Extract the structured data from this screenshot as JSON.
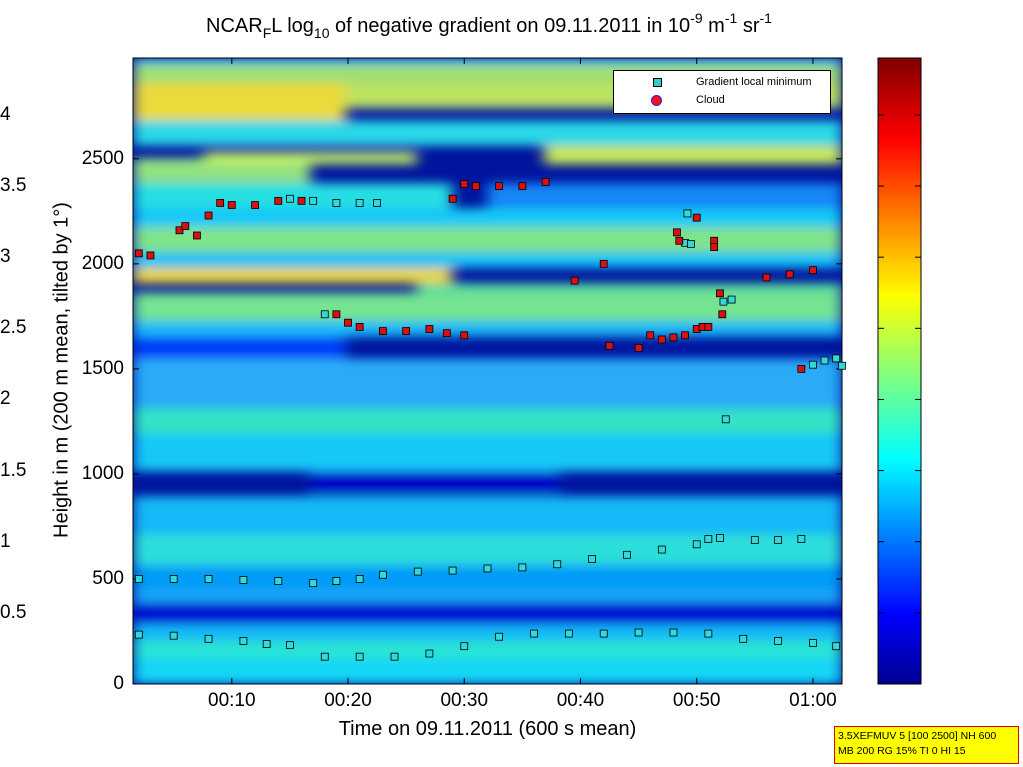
{
  "title": {
    "prefix": "NCAR",
    "sub1": "F",
    "mid": "L log",
    "sub2": "10",
    "after": " of negative gradient on 09.11.2011 in 10",
    "exp1": "-9",
    "m": " m",
    "exp2": "-1",
    "sr": " sr",
    "exp3": "-1"
  },
  "chart_data": {
    "type": "heatmap",
    "xlabel": "Time on 09.11.2011 (600 s mean)",
    "ylabel": "Height in m (200 m mean, tilted by 1°)",
    "xlim_minutes": [
      1.5,
      62.5
    ],
    "ylim": [
      0,
      2980
    ],
    "x_ticks": [
      "00:10",
      "00:20",
      "00:30",
      "00:40",
      "00:50",
      "01:00"
    ],
    "x_tick_minutes": [
      10,
      20,
      30,
      40,
      50,
      60
    ],
    "y_ticks": [
      0,
      500,
      1000,
      1500,
      2000,
      2500
    ],
    "colorbar": {
      "min": 0,
      "max": 4.4,
      "ticks": [
        0.5,
        1,
        1.5,
        2,
        2.5,
        3,
        3.5,
        4
      ],
      "colormap": "jet"
    },
    "legend": {
      "placement": "top-right",
      "entries": [
        "Gradient local minimum",
        "Cloud"
      ]
    },
    "series": [
      {
        "name": "Gradient local minimum",
        "marker": "square",
        "points": [
          [
            2,
            235
          ],
          [
            5,
            230
          ],
          [
            8,
            215
          ],
          [
            11,
            205
          ],
          [
            13,
            190
          ],
          [
            15,
            185
          ],
          [
            18,
            130
          ],
          [
            21,
            130
          ],
          [
            24,
            130
          ],
          [
            27,
            145
          ],
          [
            30,
            180
          ],
          [
            33,
            225
          ],
          [
            36,
            240
          ],
          [
            39,
            240
          ],
          [
            42,
            240
          ],
          [
            45,
            245
          ],
          [
            48,
            245
          ],
          [
            51,
            240
          ],
          [
            54,
            215
          ],
          [
            57,
            205
          ],
          [
            60,
            195
          ],
          [
            62,
            180
          ],
          [
            2,
            500
          ],
          [
            5,
            500
          ],
          [
            8,
            500
          ],
          [
            11,
            495
          ],
          [
            14,
            490
          ],
          [
            17,
            480
          ],
          [
            19,
            490
          ],
          [
            21,
            500
          ],
          [
            23,
            520
          ],
          [
            26,
            535
          ],
          [
            29,
            540
          ],
          [
            32,
            550
          ],
          [
            35,
            555
          ],
          [
            38,
            570
          ],
          [
            41,
            595
          ],
          [
            44,
            615
          ],
          [
            47,
            640
          ],
          [
            50,
            665
          ],
          [
            51,
            690
          ],
          [
            52,
            695
          ],
          [
            55,
            685
          ],
          [
            57,
            685
          ],
          [
            59,
            690
          ],
          [
            15,
            2310
          ],
          [
            17,
            2300
          ],
          [
            19,
            2290
          ],
          [
            21,
            2290
          ],
          [
            22.5,
            2290
          ],
          [
            18,
            1760
          ],
          [
            62,
            1550
          ],
          [
            61,
            1540
          ],
          [
            60,
            1520
          ],
          [
            62.5,
            1515
          ],
          [
            52.3,
            1820
          ],
          [
            53,
            1830
          ],
          [
            52.5,
            1260
          ],
          [
            49,
            2100
          ],
          [
            49.5,
            2095
          ],
          [
            49.2,
            2240
          ]
        ]
      },
      {
        "name": "Cloud",
        "marker": "square",
        "points": [
          [
            2,
            2050
          ],
          [
            3,
            2040
          ],
          [
            5.5,
            2160
          ],
          [
            6,
            2180
          ],
          [
            7,
            2135
          ],
          [
            8,
            2230
          ],
          [
            9,
            2290
          ],
          [
            10,
            2280
          ],
          [
            12,
            2280
          ],
          [
            14,
            2300
          ],
          [
            16,
            2300
          ],
          [
            19,
            1760
          ],
          [
            20,
            1720
          ],
          [
            21,
            1700
          ],
          [
            23,
            1680
          ],
          [
            25,
            1680
          ],
          [
            27,
            1690
          ],
          [
            28.5,
            1670
          ],
          [
            30,
            1660
          ],
          [
            29,
            2310
          ],
          [
            30,
            2380
          ],
          [
            31,
            2370
          ],
          [
            33,
            2370
          ],
          [
            35,
            2370
          ],
          [
            37,
            2390
          ],
          [
            39.5,
            1920
          ],
          [
            42,
            2000
          ],
          [
            42.5,
            1610
          ],
          [
            45,
            1600
          ],
          [
            46,
            1660
          ],
          [
            47,
            1640
          ],
          [
            48,
            1650
          ],
          [
            49,
            1660
          ],
          [
            50,
            1690
          ],
          [
            50.5,
            1700
          ],
          [
            51,
            1700
          ],
          [
            51.5,
            2110
          ],
          [
            52,
            1860
          ],
          [
            52.2,
            1760
          ],
          [
            48.5,
            2110
          ],
          [
            50,
            2220
          ],
          [
            51.5,
            2080
          ],
          [
            56,
            1935
          ],
          [
            58,
            1950
          ],
          [
            60,
            1970
          ],
          [
            59,
            1500
          ],
          [
            48.3,
            2150
          ]
        ]
      }
    ]
  },
  "info_box": {
    "line1": "3.5XEFMUV 5 [100 2500] NH 600",
    "line2": "MB 200 RG 15% TI 0 HI 15"
  }
}
